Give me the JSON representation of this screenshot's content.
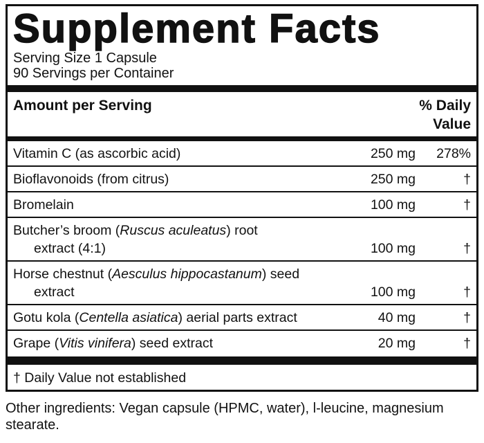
{
  "header": {
    "title": "Supplement Facts",
    "serving_size": "Serving Size 1 Capsule",
    "servings_per_container": "90 Servings per Container"
  },
  "table": {
    "amount_heading": "Amount per Serving",
    "daily_value_heading": "% Daily Value",
    "rows": [
      {
        "name": [
          "Vitamin C (as ascorbic acid)"
        ],
        "amount": "250 mg",
        "daily_value": "278%"
      },
      {
        "name": [
          "Bioflavonoids (from citrus)"
        ],
        "amount": "250 mg",
        "daily_value": "†"
      },
      {
        "name": [
          "Bromelain"
        ],
        "amount": "100 mg",
        "daily_value": "†"
      },
      {
        "name": [
          "Butcher’s broom (",
          "Ruscus aculeatus",
          ") root extract (4:1)"
        ],
        "amount": "100 mg",
        "daily_value": "†"
      },
      {
        "name": [
          "Horse chestnut (",
          "Aesculus hippocastanum",
          ") seed extract"
        ],
        "amount": "100 mg",
        "daily_value": "†"
      },
      {
        "name": [
          "Gotu kola (",
          "Centella asiatica",
          ") aerial parts extract"
        ],
        "amount": "40 mg",
        "daily_value": "†"
      },
      {
        "name": [
          "Grape (",
          "Vitis vinifera",
          ") seed extract"
        ],
        "amount": "20 mg",
        "daily_value": "†"
      }
    ]
  },
  "footnote": "† Daily Value not established",
  "other_ingredients": "Other ingredients: Vegan capsule (HPMC, water), l-leucine, magnesium stearate."
}
